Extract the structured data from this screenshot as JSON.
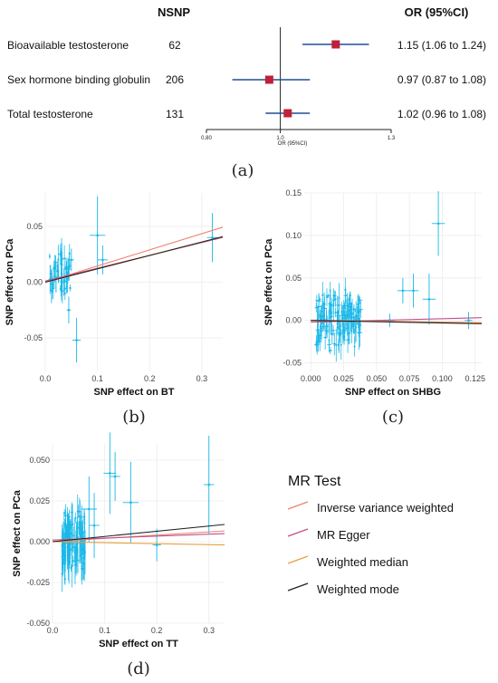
{
  "forest": {
    "header_nsnp": "NSNP",
    "header_or": "OR (95%CI)",
    "axis_label": "OR (95%CI)",
    "ticks": [
      "0.80",
      "1.0",
      "1.3"
    ],
    "rows": [
      {
        "label": "Bioavailable testosterone",
        "nsnp": "62",
        "or_text": "1.15 (1.06 to 1.24)"
      },
      {
        "label": "Sex hormone binding globulin",
        "nsnp": "206",
        "or_text": "0.97 (0.87 to 1.08)"
      },
      {
        "label": "Total testosterone",
        "nsnp": "131",
        "or_text": "1.02 (0.96 to 1.08)"
      }
    ],
    "panel": "(a)"
  },
  "legend": {
    "title": "MR Test",
    "items": [
      "Inverse variance weighted",
      "MR Egger",
      "Weighted median",
      "Weighted mode"
    ],
    "colors": [
      "#f08070",
      "#c0508a",
      "#e8a040",
      "#222222"
    ]
  },
  "colors": {
    "point": "#1ab8e8",
    "marker": "#c0203a",
    "ci": "#1f4e96"
  },
  "chart_data": [
    {
      "type": "forest",
      "panel": "(a)",
      "categories": [
        "Bioavailable testosterone",
        "Sex hormone binding globulin",
        "Total testosterone"
      ],
      "or": [
        1.15,
        0.97,
        1.02
      ],
      "ci_low": [
        1.06,
        0.87,
        0.96
      ],
      "ci_high": [
        1.24,
        1.08,
        1.08
      ],
      "nsnp": [
        62,
        206,
        131
      ],
      "xlim": [
        0.8,
        1.3
      ],
      "reference": 1.0
    },
    {
      "type": "scatter",
      "panel": "(b)",
      "xlabel": "SNP effect on BT",
      "ylabel": "SNP effect on PCa",
      "xlim": [
        0,
        0.34
      ],
      "ylim": [
        -0.08,
        0.08
      ],
      "xticks": [
        "0.0",
        "0.1",
        "0.2",
        "0.3"
      ],
      "yticks": [
        "-0.05",
        "0.00",
        "0.05"
      ],
      "ytick_values": [
        -0.05,
        0,
        0.05
      ],
      "xtick_values": [
        0,
        0.1,
        0.2,
        0.3
      ],
      "lines": [
        {
          "method": "Inverse variance weighted",
          "slope": 0.145
        },
        {
          "method": "MR Egger",
          "slope": 0.115,
          "intercept": 0.001
        },
        {
          "method": "Weighted median",
          "slope": 0.12
        },
        {
          "method": "Weighted mode",
          "slope": 0.12
        }
      ],
      "points": [
        {
          "x": 0.32,
          "y": 0.04,
          "xe": 0.01,
          "ye": 0.022
        },
        {
          "x": 0.1,
          "y": 0.042,
          "xe": 0.015,
          "ye": 0.035
        },
        {
          "x": 0.11,
          "y": 0.02,
          "xe": 0.01,
          "ye": 0.013
        },
        {
          "x": 0.06,
          "y": -0.052,
          "xe": 0.008,
          "ye": 0.02
        },
        {
          "x": 0.05,
          "y": 0.02,
          "xe": 0.005,
          "ye": 0.01
        },
        {
          "x": 0.045,
          "y": -0.025,
          "xe": 0.004,
          "ye": 0.012
        },
        {
          "x": 0.04,
          "y": 0.012,
          "xe": 0.005,
          "ye": 0.01
        }
      ]
    },
    {
      "type": "scatter",
      "panel": "(c)",
      "xlabel": "SNP effect on SHBG",
      "ylabel": "SNP effect on PCa",
      "xlim": [
        -0.005,
        0.13
      ],
      "ylim": [
        -0.06,
        0.15
      ],
      "xticks": [
        "0.000",
        "0.025",
        "0.050",
        "0.075",
        "0.100",
        "0.125"
      ],
      "yticks": [
        "-0.05",
        "0.00",
        "0.05",
        "0.10",
        "0.15"
      ],
      "ytick_values": [
        -0.05,
        0,
        0.05,
        0.1,
        0.15
      ],
      "xtick_values": [
        0,
        0.025,
        0.05,
        0.075,
        0.1,
        0.125
      ],
      "lines": [
        {
          "method": "Inverse variance weighted",
          "slope": -0.02
        },
        {
          "method": "MR Egger",
          "slope": 0.04,
          "intercept": -0.002
        },
        {
          "method": "Weighted median",
          "slope": -0.025
        },
        {
          "method": "Weighted mode",
          "slope": -0.03
        }
      ],
      "points": [
        {
          "x": 0.097,
          "y": 0.114,
          "xe": 0.005,
          "ye": 0.038
        },
        {
          "x": 0.09,
          "y": 0.025,
          "xe": 0.005,
          "ye": 0.03
        },
        {
          "x": 0.078,
          "y": 0.035,
          "xe": 0.004,
          "ye": 0.02
        },
        {
          "x": 0.07,
          "y": 0.035,
          "xe": 0.004,
          "ye": 0.015
        },
        {
          "x": 0.06,
          "y": 0.0,
          "xe": 0.004,
          "ye": 0.008
        },
        {
          "x": 0.12,
          "y": 0.0,
          "xe": 0.003,
          "ye": 0.01
        }
      ]
    },
    {
      "type": "scatter",
      "panel": "(d)",
      "xlabel": "SNP effect on TT",
      "ylabel": "SNP effect on PCa",
      "xlim": [
        0,
        0.33
      ],
      "ylim": [
        -0.05,
        0.06
      ],
      "xticks": [
        "0.0",
        "0.1",
        "0.2",
        "0.3"
      ],
      "yticks": [
        "-0.050",
        "-0.025",
        "0.000",
        "0.025",
        "0.050"
      ],
      "ytick_values": [
        -0.05,
        -0.025,
        0,
        0.025,
        0.05
      ],
      "xtick_values": [
        0,
        0.1,
        0.2,
        0.3
      ],
      "lines": [
        {
          "method": "Inverse variance weighted",
          "slope": 0.02
        },
        {
          "method": "MR Egger",
          "slope": 0.012,
          "intercept": 0.001
        },
        {
          "method": "Weighted median",
          "slope": -0.006
        },
        {
          "method": "Weighted mode",
          "slope": 0.032
        }
      ],
      "points": [
        {
          "x": 0.3,
          "y": 0.035,
          "xe": 0.01,
          "ye": 0.03
        },
        {
          "x": 0.2,
          "y": -0.002,
          "xe": 0.008,
          "ye": 0.01
        },
        {
          "x": 0.15,
          "y": 0.024,
          "xe": 0.015,
          "ye": 0.025
        },
        {
          "x": 0.12,
          "y": 0.04,
          "xe": 0.01,
          "ye": 0.015
        },
        {
          "x": 0.11,
          "y": 0.042,
          "xe": 0.012,
          "ye": 0.025
        },
        {
          "x": 0.07,
          "y": 0.02,
          "xe": 0.015,
          "ye": 0.02
        },
        {
          "x": 0.08,
          "y": 0.01,
          "xe": 0.01,
          "ye": 0.02
        }
      ]
    }
  ]
}
